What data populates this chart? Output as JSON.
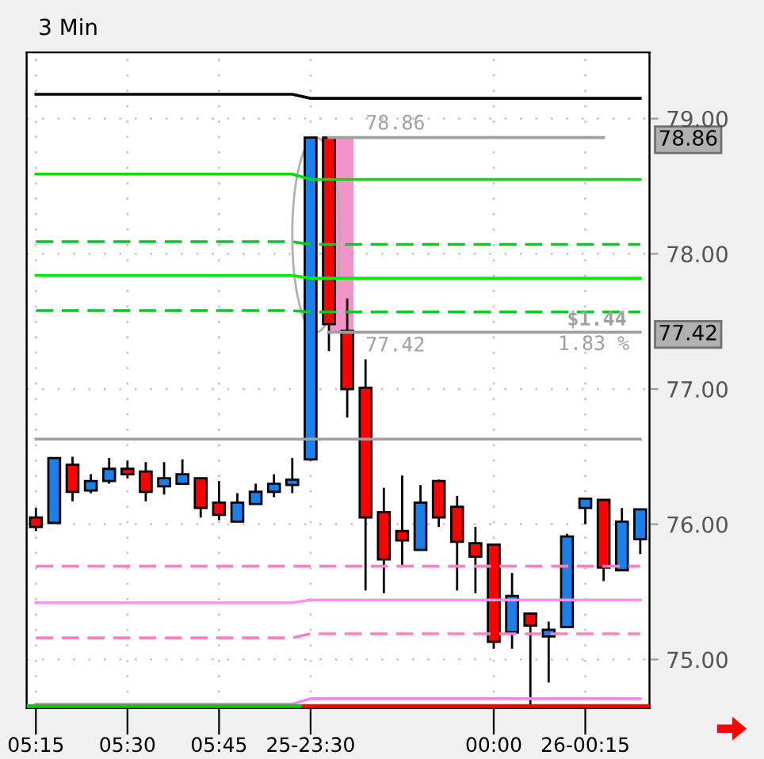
{
  "chart_data": {
    "type": "candlestick",
    "title": "3 Min",
    "categories": [
      "05:15",
      null,
      null,
      null,
      null,
      "05:30",
      null,
      null,
      null,
      null,
      "05:45",
      null,
      null,
      null,
      null,
      "25-23:30",
      null,
      null,
      null,
      null,
      null,
      null,
      null,
      null,
      null,
      "00:00",
      null,
      null,
      null,
      null,
      "26-00:15",
      null,
      null,
      null
    ],
    "ohlc": [
      [
        76.05,
        76.12,
        75.95,
        75.98
      ],
      [
        76.01,
        76.49,
        76.01,
        76.49
      ],
      [
        76.44,
        76.5,
        76.17,
        76.24
      ],
      [
        76.25,
        76.37,
        76.23,
        76.32
      ],
      [
        76.32,
        76.49,
        76.3,
        76.41
      ],
      [
        76.41,
        76.47,
        76.34,
        76.37
      ],
      [
        76.39,
        76.46,
        76.17,
        76.24
      ],
      [
        76.28,
        76.46,
        76.22,
        76.34
      ],
      [
        76.3,
        76.48,
        76.3,
        76.37
      ],
      [
        76.34,
        76.34,
        76.05,
        76.12
      ],
      [
        76.16,
        76.32,
        76.03,
        76.07
      ],
      [
        76.02,
        76.23,
        76.02,
        76.16
      ],
      [
        76.15,
        76.3,
        76.15,
        76.24
      ],
      [
        76.24,
        76.37,
        76.2,
        76.3
      ],
      [
        76.29,
        76.49,
        76.23,
        76.33
      ],
      [
        76.48,
        78.86,
        76.47,
        78.86
      ],
      [
        78.86,
        78.86,
        77.28,
        77.48
      ],
      [
        77.43,
        77.67,
        76.79,
        77.0
      ],
      [
        77.01,
        77.22,
        75.51,
        76.05
      ],
      [
        76.09,
        76.27,
        75.49,
        75.74
      ],
      [
        75.95,
        76.36,
        75.69,
        75.88
      ],
      [
        75.81,
        76.29,
        75.81,
        76.16
      ],
      [
        76.32,
        76.33,
        75.98,
        76.05
      ],
      [
        76.13,
        76.21,
        75.51,
        75.87
      ],
      [
        75.86,
        75.98,
        75.49,
        75.76
      ],
      [
        75.85,
        75.85,
        75.08,
        75.13
      ],
      [
        75.2,
        75.64,
        75.08,
        75.47
      ],
      [
        75.34,
        75.34,
        74.64,
        75.25
      ],
      [
        75.17,
        75.28,
        74.83,
        75.22
      ],
      [
        75.24,
        75.93,
        75.24,
        75.91
      ],
      [
        76.12,
        76.19,
        76.0,
        76.19
      ],
      [
        76.18,
        76.18,
        75.58,
        75.68
      ],
      [
        75.66,
        76.12,
        75.66,
        76.02
      ],
      [
        75.89,
        76.11,
        75.78,
        76.11
      ]
    ],
    "colors": [
      "#ff0000",
      "#1a7fe8",
      "#ff0000",
      "#1a7fe8",
      "#1a7fe8",
      "#ff0000",
      "#ff0000",
      "#1a7fe8",
      "#1a7fe8",
      "#ff0000",
      "#ff0000",
      "#1a7fe8",
      "#1a7fe8",
      "#1a7fe8",
      "#1a7fe8",
      "#1a7fe8",
      "#ff0000",
      "#ff0000",
      "#ff0000",
      "#ff0000",
      "#ff0000",
      "#1a7fe8",
      "#ff0000",
      "#ff0000",
      "#ff0000",
      "#ff0000",
      "#1a7fe8",
      "#ff0000",
      "#1a7fe8",
      "#1a7fe8",
      "#1a7fe8",
      "#ff0000",
      "#1a7fe8",
      "#1a7fe8"
    ],
    "series": [
      {
        "type": "line",
        "color": "#000000",
        "line_style": "solid",
        "values": [
          79.18,
          79.18,
          79.18,
          79.18,
          79.18,
          79.18,
          79.18,
          79.18,
          79.18,
          79.18,
          79.18,
          79.18,
          79.18,
          79.18,
          79.18,
          79.15,
          79.15,
          79.15,
          79.15,
          79.15,
          79.15,
          79.15,
          79.15,
          79.15,
          79.15,
          79.15,
          79.15,
          79.15,
          79.15,
          79.15,
          79.15,
          79.15,
          79.15,
          79.15
        ]
      },
      {
        "type": "line",
        "color": "#00dd00",
        "line_style": "solid",
        "values": [
          78.59,
          78.59,
          78.59,
          78.59,
          78.59,
          78.59,
          78.59,
          78.59,
          78.59,
          78.59,
          78.59,
          78.59,
          78.59,
          78.59,
          78.59,
          78.55,
          78.55,
          78.55,
          78.55,
          78.55,
          78.55,
          78.55,
          78.55,
          78.55,
          78.55,
          78.55,
          78.55,
          78.55,
          78.55,
          78.55,
          78.55,
          78.55,
          78.55,
          78.55
        ]
      },
      {
        "type": "line",
        "color": "#00cc22",
        "line_style": "dashed",
        "values": [
          78.09,
          78.09,
          78.09,
          78.09,
          78.09,
          78.09,
          78.09,
          78.09,
          78.09,
          78.09,
          78.09,
          78.09,
          78.09,
          78.09,
          78.09,
          78.07,
          78.07,
          78.07,
          78.07,
          78.07,
          78.07,
          78.07,
          78.07,
          78.07,
          78.07,
          78.07,
          78.07,
          78.07,
          78.07,
          78.07,
          78.07,
          78.07,
          78.07,
          78.07
        ]
      },
      {
        "type": "line",
        "color": "#00ee00",
        "line_style": "solid",
        "values": [
          77.84,
          77.84,
          77.84,
          77.84,
          77.84,
          77.84,
          77.84,
          77.84,
          77.84,
          77.84,
          77.84,
          77.84,
          77.84,
          77.84,
          77.84,
          77.82,
          77.82,
          77.82,
          77.82,
          77.82,
          77.82,
          77.82,
          77.82,
          77.82,
          77.82,
          77.82,
          77.82,
          77.82,
          77.82,
          77.82,
          77.82,
          77.82,
          77.82,
          77.82
        ]
      },
      {
        "type": "line",
        "color": "#00cc22",
        "line_style": "dashed",
        "values": [
          77.58,
          77.58,
          77.58,
          77.58,
          77.58,
          77.58,
          77.58,
          77.58,
          77.58,
          77.58,
          77.58,
          77.58,
          77.58,
          77.58,
          77.58,
          77.57,
          77.57,
          77.57,
          77.57,
          77.57,
          77.57,
          77.57,
          77.57,
          77.57,
          77.57,
          77.57,
          77.57,
          77.57,
          77.57,
          77.57,
          77.57,
          77.57,
          77.57,
          77.57
        ]
      },
      {
        "type": "line",
        "color": "#a0a0a0",
        "line_style": "solid",
        "values": [
          76.63,
          76.63,
          76.63,
          76.63,
          76.63,
          76.63,
          76.63,
          76.63,
          76.63,
          76.63,
          76.63,
          76.63,
          76.63,
          76.63,
          76.63,
          76.63,
          76.63,
          76.63,
          76.63,
          76.63,
          76.63,
          76.63,
          76.63,
          76.63,
          76.63,
          76.63,
          76.63,
          76.63,
          76.63,
          76.63,
          76.63,
          76.63,
          76.63,
          76.63
        ]
      },
      {
        "type": "line",
        "color": "#a0a0a0",
        "line_style": "solid",
        "values": [
          null,
          null,
          null,
          null,
          null,
          null,
          null,
          null,
          null,
          null,
          null,
          null,
          null,
          null,
          null,
          null,
          78.86,
          78.86,
          78.86,
          78.86,
          78.86,
          78.86,
          78.86,
          78.86,
          78.86,
          78.86,
          78.86,
          78.86,
          78.86,
          78.86,
          78.86,
          78.86,
          null,
          null
        ]
      },
      {
        "type": "line",
        "color": "#a0a0a0",
        "line_style": "solid",
        "values": [
          null,
          null,
          null,
          null,
          null,
          null,
          null,
          null,
          null,
          null,
          null,
          null,
          null,
          null,
          null,
          null,
          77.42,
          77.42,
          77.42,
          77.42,
          77.42,
          77.42,
          77.42,
          77.42,
          77.42,
          77.42,
          77.42,
          77.42,
          77.42,
          77.42,
          77.42,
          77.42,
          77.42,
          77.42
        ]
      },
      {
        "type": "line",
        "color": "#ff80c0",
        "line_style": "dashed",
        "values": [
          75.69,
          75.69,
          75.69,
          75.69,
          75.69,
          75.69,
          75.69,
          75.69,
          75.69,
          75.69,
          75.69,
          75.69,
          75.69,
          75.69,
          75.69,
          75.69,
          75.69,
          75.69,
          75.69,
          75.69,
          75.69,
          75.69,
          75.69,
          75.69,
          75.69,
          75.69,
          75.69,
          75.69,
          75.69,
          75.69,
          75.69,
          75.69,
          75.69,
          75.69
        ]
      },
      {
        "type": "line",
        "color": "#ff90f0",
        "line_style": "solid",
        "values": [
          75.42,
          75.42,
          75.42,
          75.42,
          75.42,
          75.42,
          75.42,
          75.42,
          75.42,
          75.42,
          75.42,
          75.42,
          75.42,
          75.42,
          75.42,
          75.44,
          75.44,
          75.44,
          75.44,
          75.44,
          75.44,
          75.44,
          75.44,
          75.44,
          75.44,
          75.44,
          75.44,
          75.44,
          75.44,
          75.44,
          75.44,
          75.44,
          75.44,
          75.44
        ]
      },
      {
        "type": "line",
        "color": "#ff80c0",
        "line_style": "dashed",
        "values": [
          75.16,
          75.16,
          75.16,
          75.16,
          75.16,
          75.16,
          75.16,
          75.16,
          75.16,
          75.16,
          75.16,
          75.16,
          75.16,
          75.16,
          75.16,
          75.19,
          75.19,
          75.19,
          75.19,
          75.19,
          75.19,
          75.19,
          75.19,
          75.19,
          75.19,
          75.19,
          75.19,
          75.19,
          75.19,
          75.19,
          75.19,
          75.19,
          75.19,
          75.19
        ]
      },
      {
        "type": "line",
        "color": "#ee88ee",
        "line_style": "solid",
        "values": [
          74.67,
          74.67,
          74.67,
          74.67,
          74.67,
          74.67,
          74.67,
          74.67,
          74.67,
          74.67,
          74.67,
          74.67,
          74.67,
          74.67,
          74.67,
          74.71,
          74.71,
          74.71,
          74.71,
          74.71,
          74.71,
          74.71,
          74.71,
          74.71,
          74.71,
          74.71,
          74.71,
          74.71,
          74.71,
          74.71,
          74.71,
          74.71,
          74.71,
          74.71
        ]
      }
    ],
    "ylim": [
      74.64,
      79.49
    ],
    "yticks": [
      {
        "value": 75,
        "label": "75.00"
      },
      {
        "value": 76,
        "label": "76.00"
      },
      {
        "value": 77,
        "label": "77.00"
      },
      {
        "value": 78,
        "label": "78.00"
      },
      {
        "value": 79,
        "label": "79.00"
      }
    ],
    "y2lim": [
      74.64,
      79.49
    ],
    "y2ticks": [
      78.86,
      77.42
    ],
    "grid": true,
    "annotations": [
      {
        "text": "78.86",
        "y": 78.86
      },
      {
        "text": "77.42",
        "y": 77.42
      },
      {
        "text": "$1.44",
        "y": 77.42
      },
      {
        "text": "1.83 %",
        "y": 77.42
      }
    ]
  }
}
